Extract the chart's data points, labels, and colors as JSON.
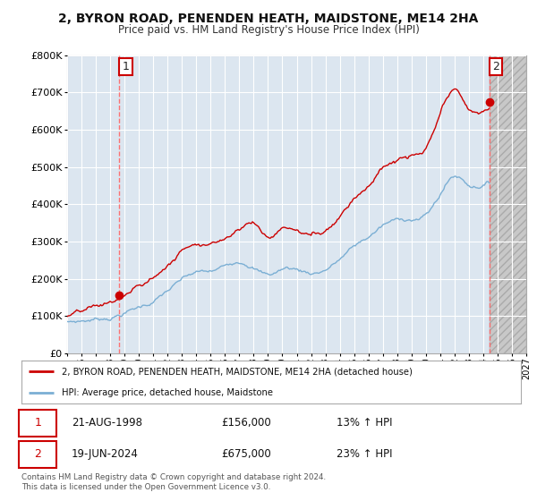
{
  "title": "2, BYRON ROAD, PENENDEN HEATH, MAIDSTONE, ME14 2HA",
  "subtitle": "Price paid vs. HM Land Registry's House Price Index (HPI)",
  "background_color": "#ffffff",
  "plot_bg_color": "#dce6f0",
  "grid_color": "#ffffff",
  "future_bg_color": "#cccccc",
  "legend_label_red": "2, BYRON ROAD, PENENDEN HEATH, MAIDSTONE, ME14 2HA (detached house)",
  "legend_label_blue": "HPI: Average price, detached house, Maidstone",
  "footnote": "Contains HM Land Registry data © Crown copyright and database right 2024.\nThis data is licensed under the Open Government Licence v3.0.",
  "transaction1_date": "21-AUG-1998",
  "transaction1_price": "£156,000",
  "transaction1_hpi": "13% ↑ HPI",
  "transaction2_date": "19-JUN-2024",
  "transaction2_price": "£675,000",
  "transaction2_hpi": "23% ↑ HPI",
  "ylim": [
    0,
    800000
  ],
  "yticks": [
    0,
    100000,
    200000,
    300000,
    400000,
    500000,
    600000,
    700000,
    800000
  ],
  "red_color": "#cc0000",
  "blue_color": "#7bafd4",
  "marker1_x": 1998.64,
  "marker1_y": 156000,
  "marker2_x": 2024.47,
  "marker2_y": 675000,
  "xlim_left": 1995.0,
  "xlim_right": 2027.0,
  "data_end_x": 2024.47
}
